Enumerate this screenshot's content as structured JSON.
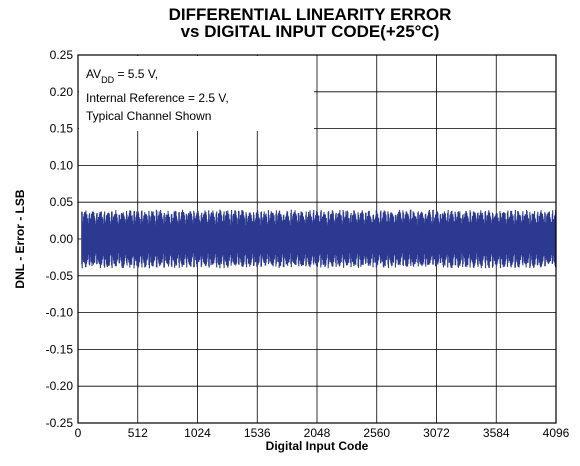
{
  "chart_data": {
    "type": "line",
    "title_line1": "DIFFERENTIAL LINEARITY ERROR",
    "title_line2": "vs DIGITAL INPUT CODE(+25°C)",
    "xlabel": "Digital Input Code",
    "ylabel": "DNL - Error - LSB",
    "xlim": [
      0,
      4096
    ],
    "ylim": [
      -0.25,
      0.25
    ],
    "x_ticks": [
      0,
      512,
      1024,
      1536,
      2048,
      2560,
      3072,
      3584,
      4096
    ],
    "x_tick_labels": [
      "0",
      "512",
      "1024",
      "1536",
      "2048",
      "2560",
      "3072",
      "3584",
      "4096"
    ],
    "y_ticks": [
      0.25,
      0.2,
      0.15,
      0.1,
      0.05,
      0,
      -0.05,
      -0.1,
      -0.15,
      -0.2,
      -0.25
    ],
    "y_tick_labels": [
      "0.25",
      "0.20",
      "0.15",
      "0.10",
      "0.05",
      "0.00",
      "-0.05",
      "-0.10",
      "-0.15",
      "-0.20",
      "-0.25"
    ],
    "grid": true,
    "annotation": {
      "line1_main": "AV",
      "line1_sub": "DD",
      "line1_rest": " = 5.5 V,",
      "line2": "Internal Reference = 2.5 V,",
      "line3": "Typical Channel Shown"
    },
    "series": [
      {
        "color": "#2b3990",
        "x_range": [
          32,
          4096
        ],
        "upper_envelope": 0.04,
        "lower_envelope": -0.04,
        "burst_period_codes": 64
      }
    ]
  }
}
